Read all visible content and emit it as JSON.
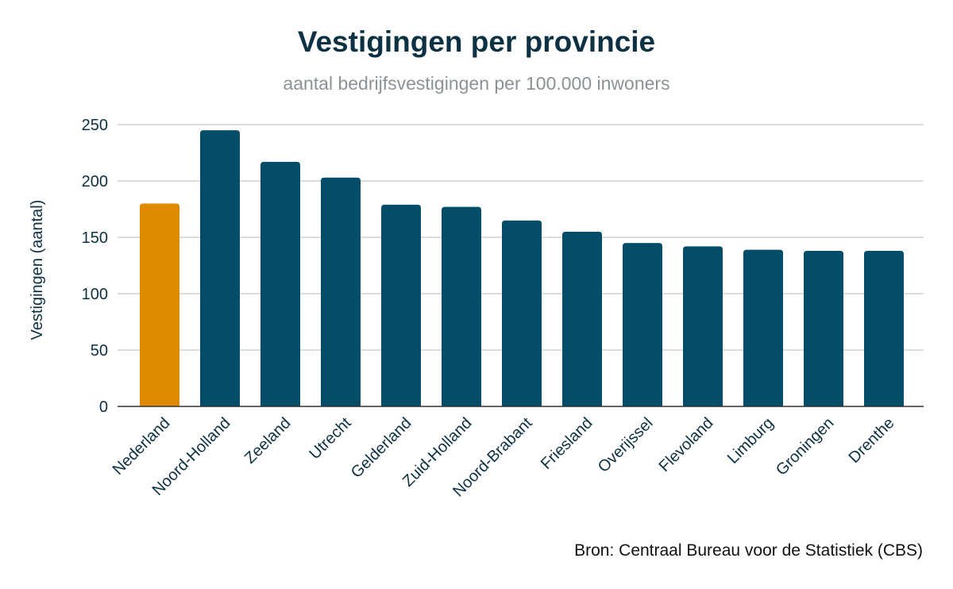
{
  "chart_data": {
    "type": "bar",
    "title": "Vestigingen per provincie",
    "subtitle": "aantal bedrijfsvestigingen per 100.000 inwoners",
    "xlabel": "",
    "ylabel": "Vestigingen (aantal)",
    "ylim": [
      0,
      250
    ],
    "yticks": [
      0,
      50,
      100,
      150,
      200,
      250
    ],
    "grid": true,
    "categories": [
      "Nederland",
      "Noord-Holland",
      "Zeeland",
      "Utrecht",
      "Gelderland",
      "Zuid-Holland",
      "Noord-Brabant",
      "Friesland",
      "Overijssel",
      "Flevoland",
      "Limburg",
      "Groningen",
      "Drenthe"
    ],
    "values": [
      180,
      245,
      217,
      203,
      179,
      177,
      165,
      155,
      145,
      142,
      139,
      138,
      138
    ],
    "colors": {
      "highlight": "#e08a00",
      "default": "#044d69",
      "grid": "#c9d3d3",
      "axis": "#333333"
    },
    "highlight_category": "Nederland",
    "source": "Bron: Centraal Bureau voor de Statistiek (CBS)"
  }
}
